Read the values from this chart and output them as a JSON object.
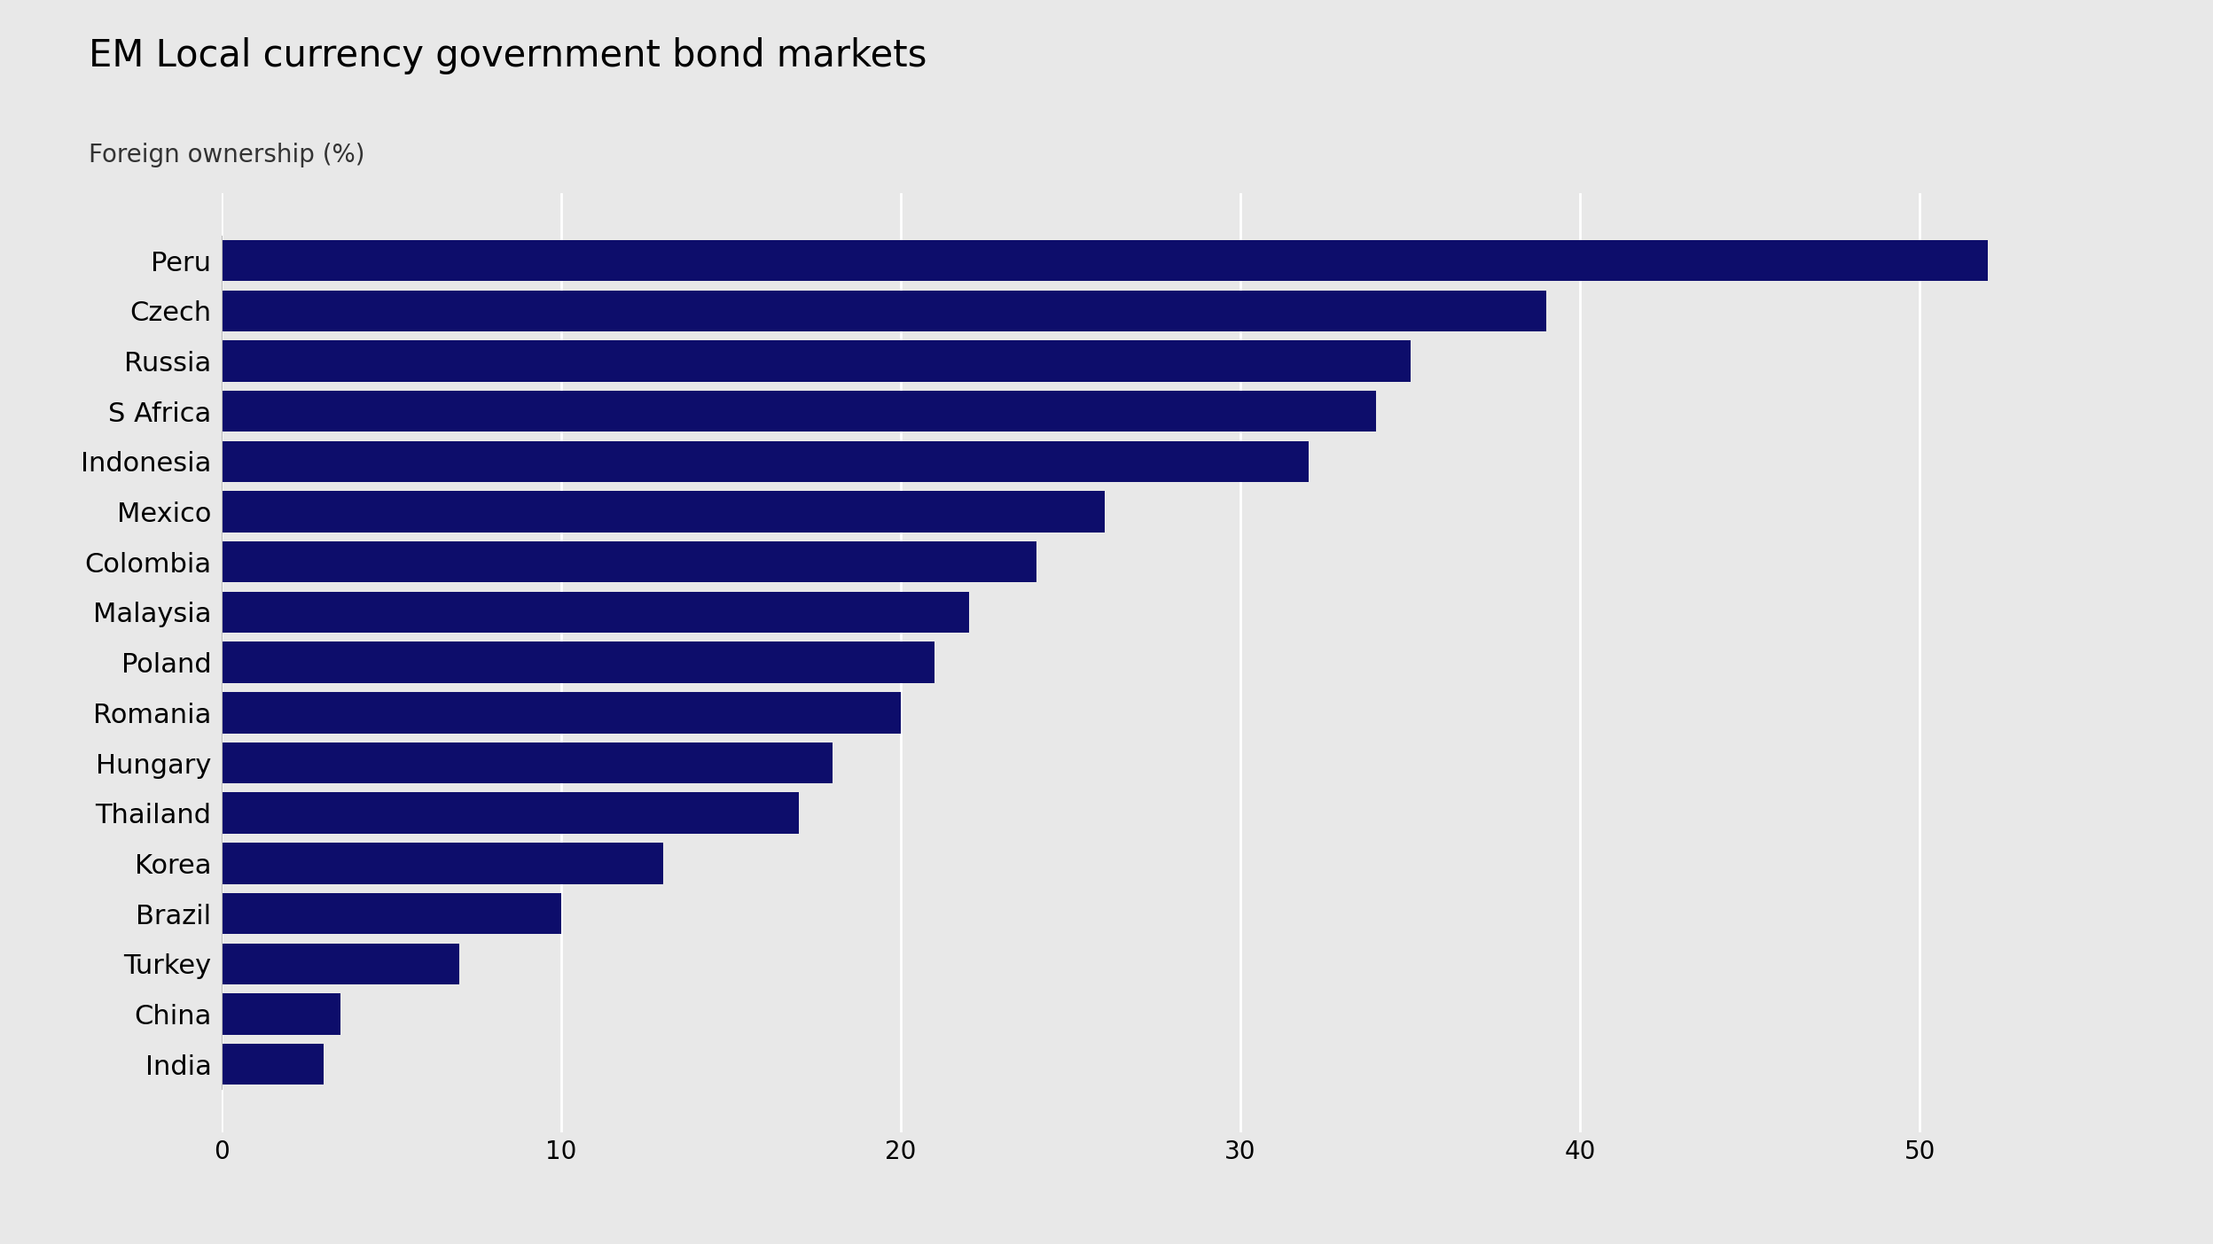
{
  "title": "EM Local currency government bond markets",
  "subtitle": "Foreign ownership (%)",
  "categories": [
    "Peru",
    "Czech",
    "Russia",
    "S Africa",
    "Indonesia",
    "Mexico",
    "Colombia",
    "Malaysia",
    "Poland",
    "Romania",
    "Hungary",
    "Thailand",
    "Korea",
    "Brazil",
    "Turkey",
    "China",
    "India"
  ],
  "values": [
    52.0,
    39.0,
    35.0,
    34.0,
    32.0,
    26.0,
    24.0,
    22.0,
    21.0,
    20.0,
    18.0,
    17.0,
    13.0,
    10.0,
    7.0,
    3.5,
    3.0
  ],
  "bar_color": "#0d0d6b",
  "background_color": "#e8e8e8",
  "xlim": [
    0,
    57
  ],
  "xticks": [
    0,
    10,
    20,
    30,
    40,
    50
  ],
  "title_fontsize": 30,
  "subtitle_fontsize": 20,
  "tick_fontsize": 20,
  "label_fontsize": 22,
  "bar_height": 0.82,
  "grid_color": "#ffffff",
  "grid_linewidth": 2.0
}
